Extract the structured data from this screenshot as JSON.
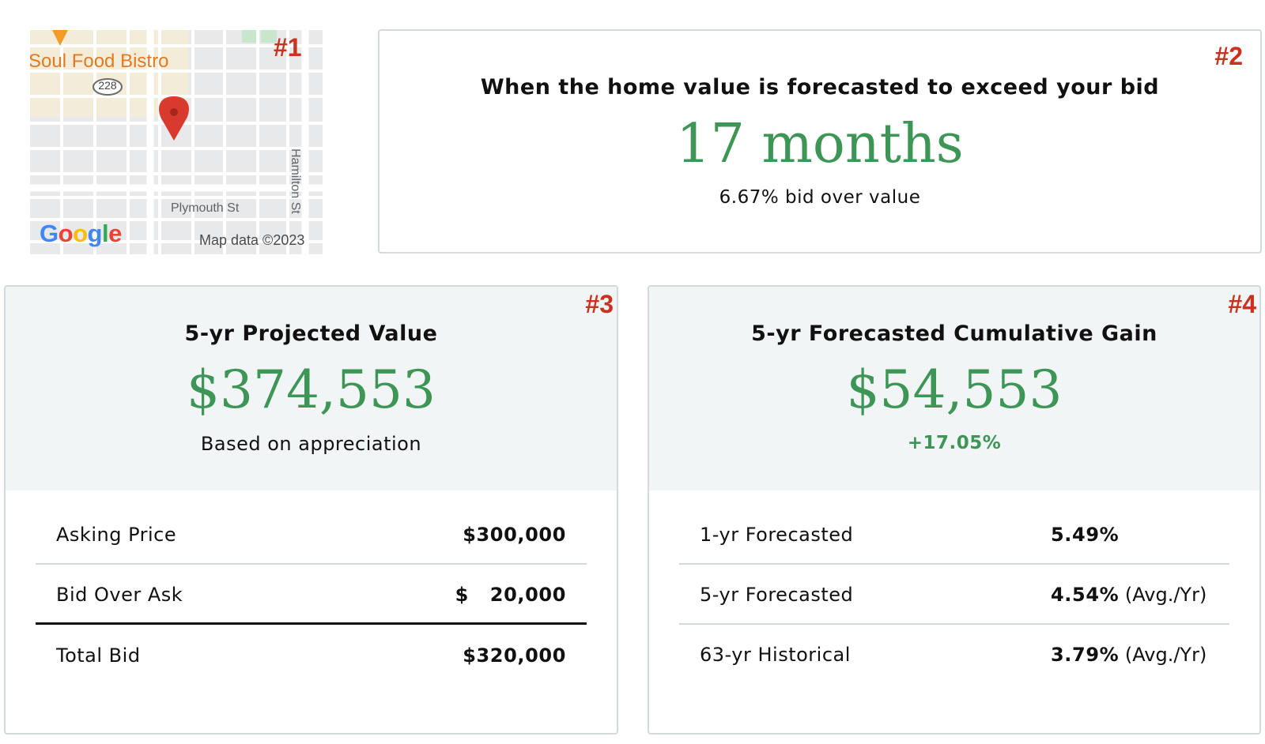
{
  "markers": {
    "m1": "#1",
    "m2": "#2",
    "m3": "#3",
    "m4": "#4"
  },
  "map": {
    "poi_label": "Soul Food Bistro",
    "route_shield": "228",
    "street_horizontal": "Plymouth St",
    "street_vertical": "Hamilton St",
    "attribution": "Map data ©2023",
    "logo": [
      "G",
      "o",
      "o",
      "g",
      "l",
      "e"
    ],
    "logo_colors": [
      "#4285F4",
      "#EA4335",
      "#FBBC05",
      "#4285F4",
      "#34A853",
      "#EA4335"
    ]
  },
  "forecast": {
    "headline": "When the home value is forecasted to exceed your bid",
    "value": "17 months",
    "subtext": "6.67% bid over value"
  },
  "projected": {
    "title": "5-yr Projected Value",
    "value": "$374,553",
    "subtext": "Based on appreciation",
    "rows": [
      {
        "label": "Asking Price",
        "amount": "$300,000"
      },
      {
        "label": "Bid Over Ask",
        "amount": "$   20,000"
      },
      {
        "label": "Total Bid",
        "amount": "$320,000"
      }
    ]
  },
  "gain": {
    "title": "5-yr Forecasted Cumulative Gain",
    "value": "$54,553",
    "subtext": "+17.05%",
    "rows": [
      {
        "label": "1-yr Forecasted",
        "pct": "5.49%",
        "suffix": ""
      },
      {
        "label": "5-yr Forecasted",
        "pct": "4.54%",
        "suffix": " (Avg./Yr)"
      },
      {
        "label": "63-yr Historical",
        "pct": "3.79%",
        "suffix": " (Avg./Yr)"
      }
    ]
  },
  "colors": {
    "accent_green": "#3d9556",
    "marker_red": "#c8321e",
    "pin_red": "#d93a2e"
  }
}
